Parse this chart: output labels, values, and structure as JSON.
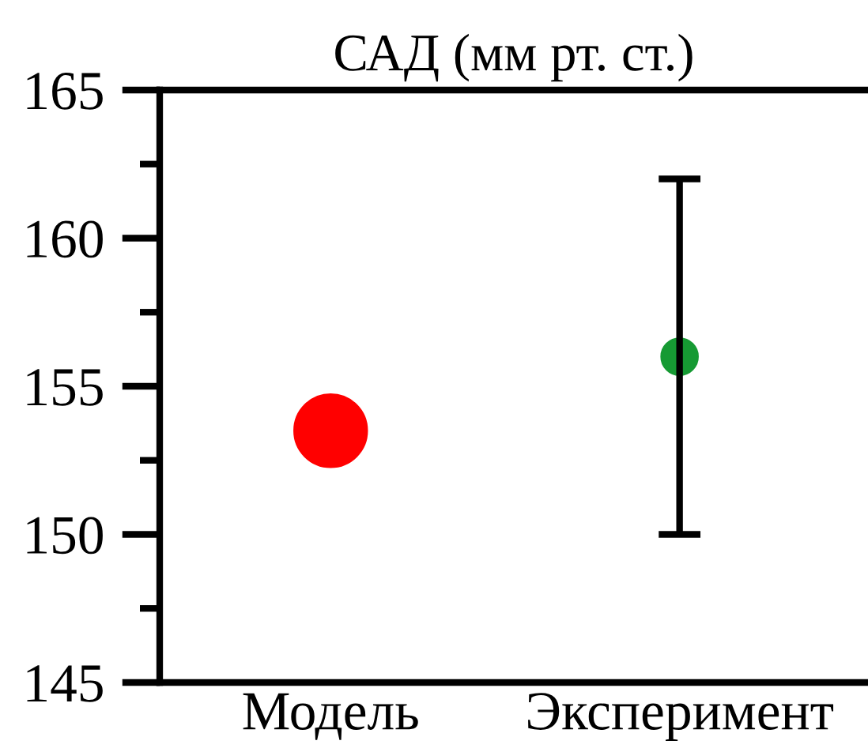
{
  "chart_data": {
    "type": "scatter",
    "title": "САД (мм рт. ст.)",
    "categories": [
      "Модель",
      "Эксперимент"
    ],
    "series": [
      {
        "values": [
          153.5,
          156
        ],
        "colors": [
          "#ff0000",
          "#169a33"
        ],
        "errors": [
          null,
          6
        ]
      }
    ],
    "ylim": [
      145,
      165
    ],
    "yticks": [
      145,
      {
        "value": 147.5,
        "label": null
      },
      150,
      {
        "value": 152.5,
        "label": null
      },
      155,
      {
        "value": 157.5,
        "label": null
      },
      160,
      {
        "value": 162.5,
        "label": null
      },
      165
    ],
    "grid": false,
    "marker": "circle"
  }
}
